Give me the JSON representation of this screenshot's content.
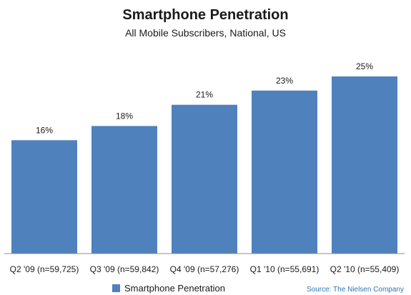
{
  "chart_data": {
    "type": "bar",
    "title": "Smartphone Penetration",
    "subtitle": "All Mobile Subscribers, National, US",
    "categories": [
      "Q2 '09 (n=59,725)",
      "Q3 '09 (n=59,842)",
      "Q4 '09 (n=57,276)",
      "Q1 '10 (n=55,691)",
      "Q2 '10 (n=55,409)"
    ],
    "series": [
      {
        "name": "Smartphone Penetration",
        "values": [
          16,
          18,
          21,
          23,
          25
        ],
        "color": "#4f81bd"
      }
    ],
    "data_labels": [
      "16%",
      "18%",
      "21%",
      "23%",
      "25%"
    ],
    "ylim": [
      0,
      30
    ],
    "grid": false,
    "legend": "bottom-left",
    "source": "Source: The Nielsen Company"
  }
}
